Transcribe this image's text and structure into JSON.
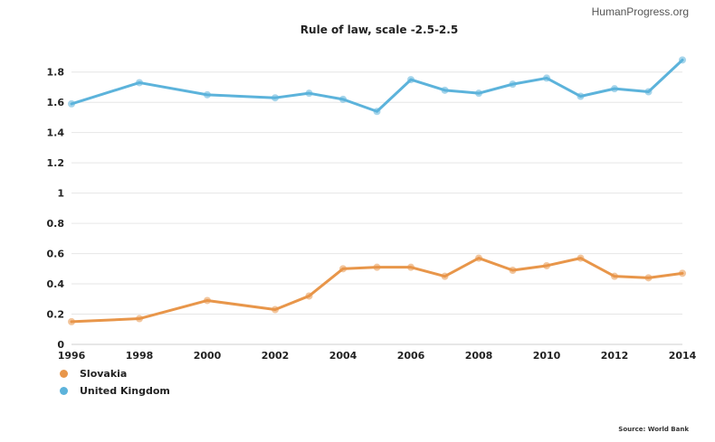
{
  "brand": "HumanProgress.org",
  "source": "Source: World Bank",
  "chart_data": {
    "type": "line",
    "title": "Rule of law, scale -2.5-2.5",
    "xlabel": "",
    "ylabel": "",
    "xlim": [
      1996,
      2014
    ],
    "ylim": [
      0,
      1.9
    ],
    "yticks": [
      0,
      0.2,
      0.4,
      0.6,
      0.8,
      1,
      1.2,
      1.4,
      1.6,
      1.8
    ],
    "ytick_labels": [
      "0",
      "0.2",
      "0.4",
      "0.6",
      "0.8",
      "1",
      "1.2",
      "1.4",
      "1.6",
      "1.8"
    ],
    "xticks": [
      1996,
      1998,
      2000,
      2002,
      2004,
      2006,
      2008,
      2010,
      2012,
      2014
    ],
    "xtick_labels": [
      "1996",
      "1998",
      "2000",
      "2002",
      "2004",
      "2006",
      "2008",
      "2010",
      "2012",
      "2014"
    ],
    "grid": true,
    "legend": "bottom-left",
    "x": [
      1996,
      1998,
      2000,
      2002,
      2003,
      2004,
      2005,
      2006,
      2007,
      2008,
      2009,
      2010,
      2011,
      2012,
      2013,
      2014
    ],
    "series": [
      {
        "name": "Slovakia",
        "color": "#e8964a",
        "values": [
          0.15,
          0.17,
          0.29,
          0.23,
          0.32,
          0.5,
          0.51,
          0.51,
          0.45,
          0.57,
          0.49,
          0.52,
          0.57,
          0.45,
          0.44,
          0.47
        ]
      },
      {
        "name": "United Kingdom",
        "color": "#5cb3db",
        "values": [
          1.59,
          1.73,
          1.65,
          1.63,
          1.66,
          1.62,
          1.54,
          1.75,
          1.68,
          1.66,
          1.72,
          1.76,
          1.64,
          1.69,
          1.67,
          1.88
        ]
      }
    ]
  }
}
